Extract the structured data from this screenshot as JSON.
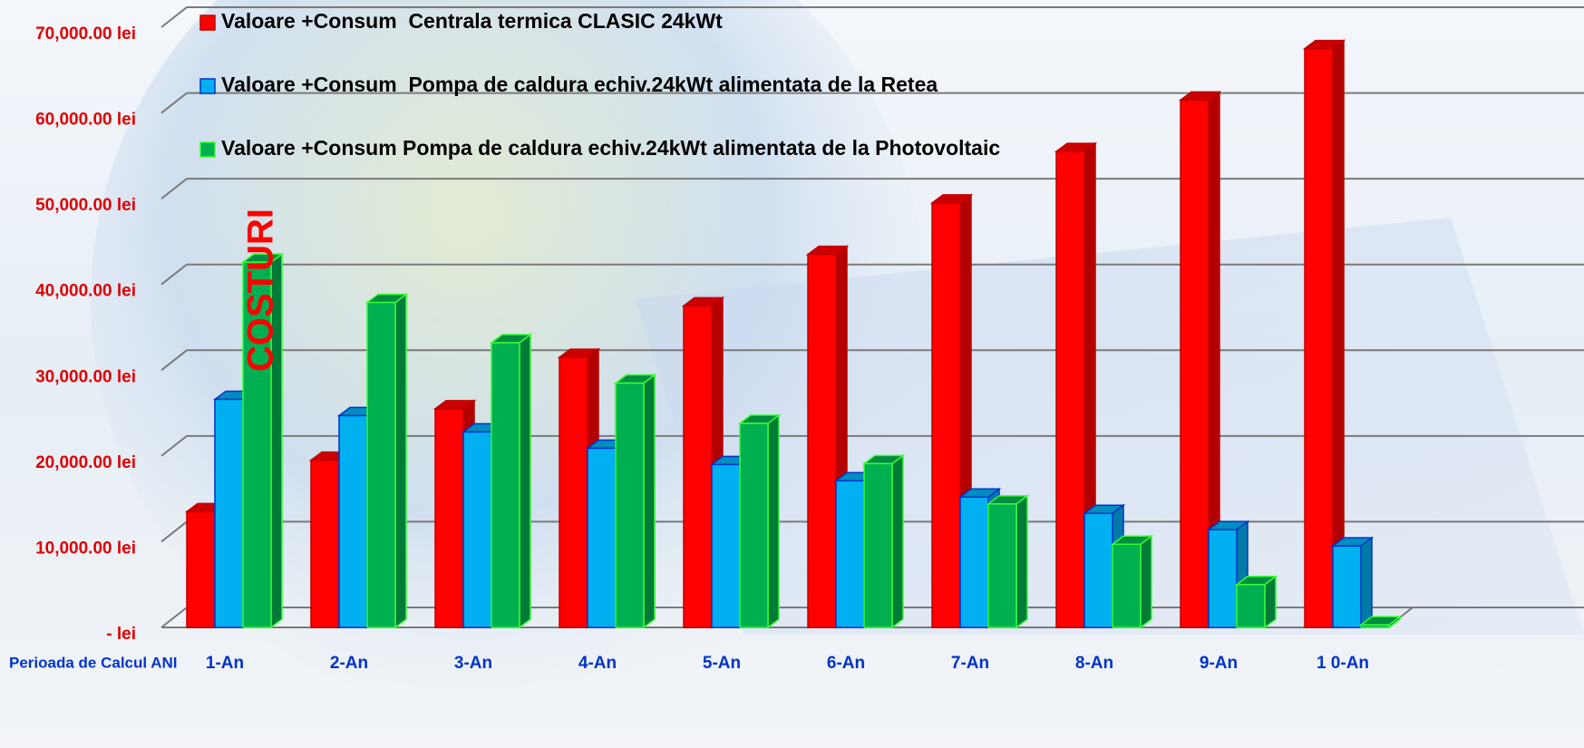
{
  "chart_data": {
    "type": "bar3d",
    "y_label": "COSTURI",
    "x_label": "Perioada de Calcul ANI",
    "categories": [
      "1-An",
      "2-An",
      "3-An",
      "4-An",
      "5-An",
      "6-An",
      "7-An",
      "8-An",
      "9-An",
      "1 0-An"
    ],
    "series": [
      {
        "name": "Valoare +Consum  Centrala termica CLASIC 24kWt",
        "color": "#ff0000",
        "edge": "#c00000",
        "values": [
          13500,
          19500,
          25500,
          31500,
          37500,
          43500,
          49500,
          55500,
          61500,
          67500
        ]
      },
      {
        "name": "Valoare +Consum  Pompa de caldura echiv.24kWt alimentata de la Retea",
        "color": "#00b0f0",
        "edge": "#0033cc",
        "values": [
          26600,
          24700,
          22800,
          20900,
          19000,
          17100,
          15200,
          13300,
          11400,
          9500
        ]
      },
      {
        "name": "Valoare +Consum Pompa de caldura echiv.24kWt alimentata de la Photovoltaic",
        "color": "#00b050",
        "edge": "#33ff33",
        "values": [
          42600,
          37900,
          33200,
          28500,
          23800,
          19100,
          14400,
          9700,
          5000,
          300
        ]
      }
    ],
    "ylim": [
      0,
      70000
    ],
    "yticks": [
      {
        "value": 0,
        "label": "-  lei"
      },
      {
        "value": 10000,
        "label": "10,000.00 lei"
      },
      {
        "value": 20000,
        "label": "20,000.00 lei"
      },
      {
        "value": 30000,
        "label": "30,000.00 lei"
      },
      {
        "value": 40000,
        "label": "40,000.00 lei"
      },
      {
        "value": 50000,
        "label": "50,000.00 lei"
      },
      {
        "value": 60000,
        "label": "60,000.00 lei"
      },
      {
        "value": 70000,
        "label": "70,000.00 lei"
      }
    ],
    "grid": true
  }
}
